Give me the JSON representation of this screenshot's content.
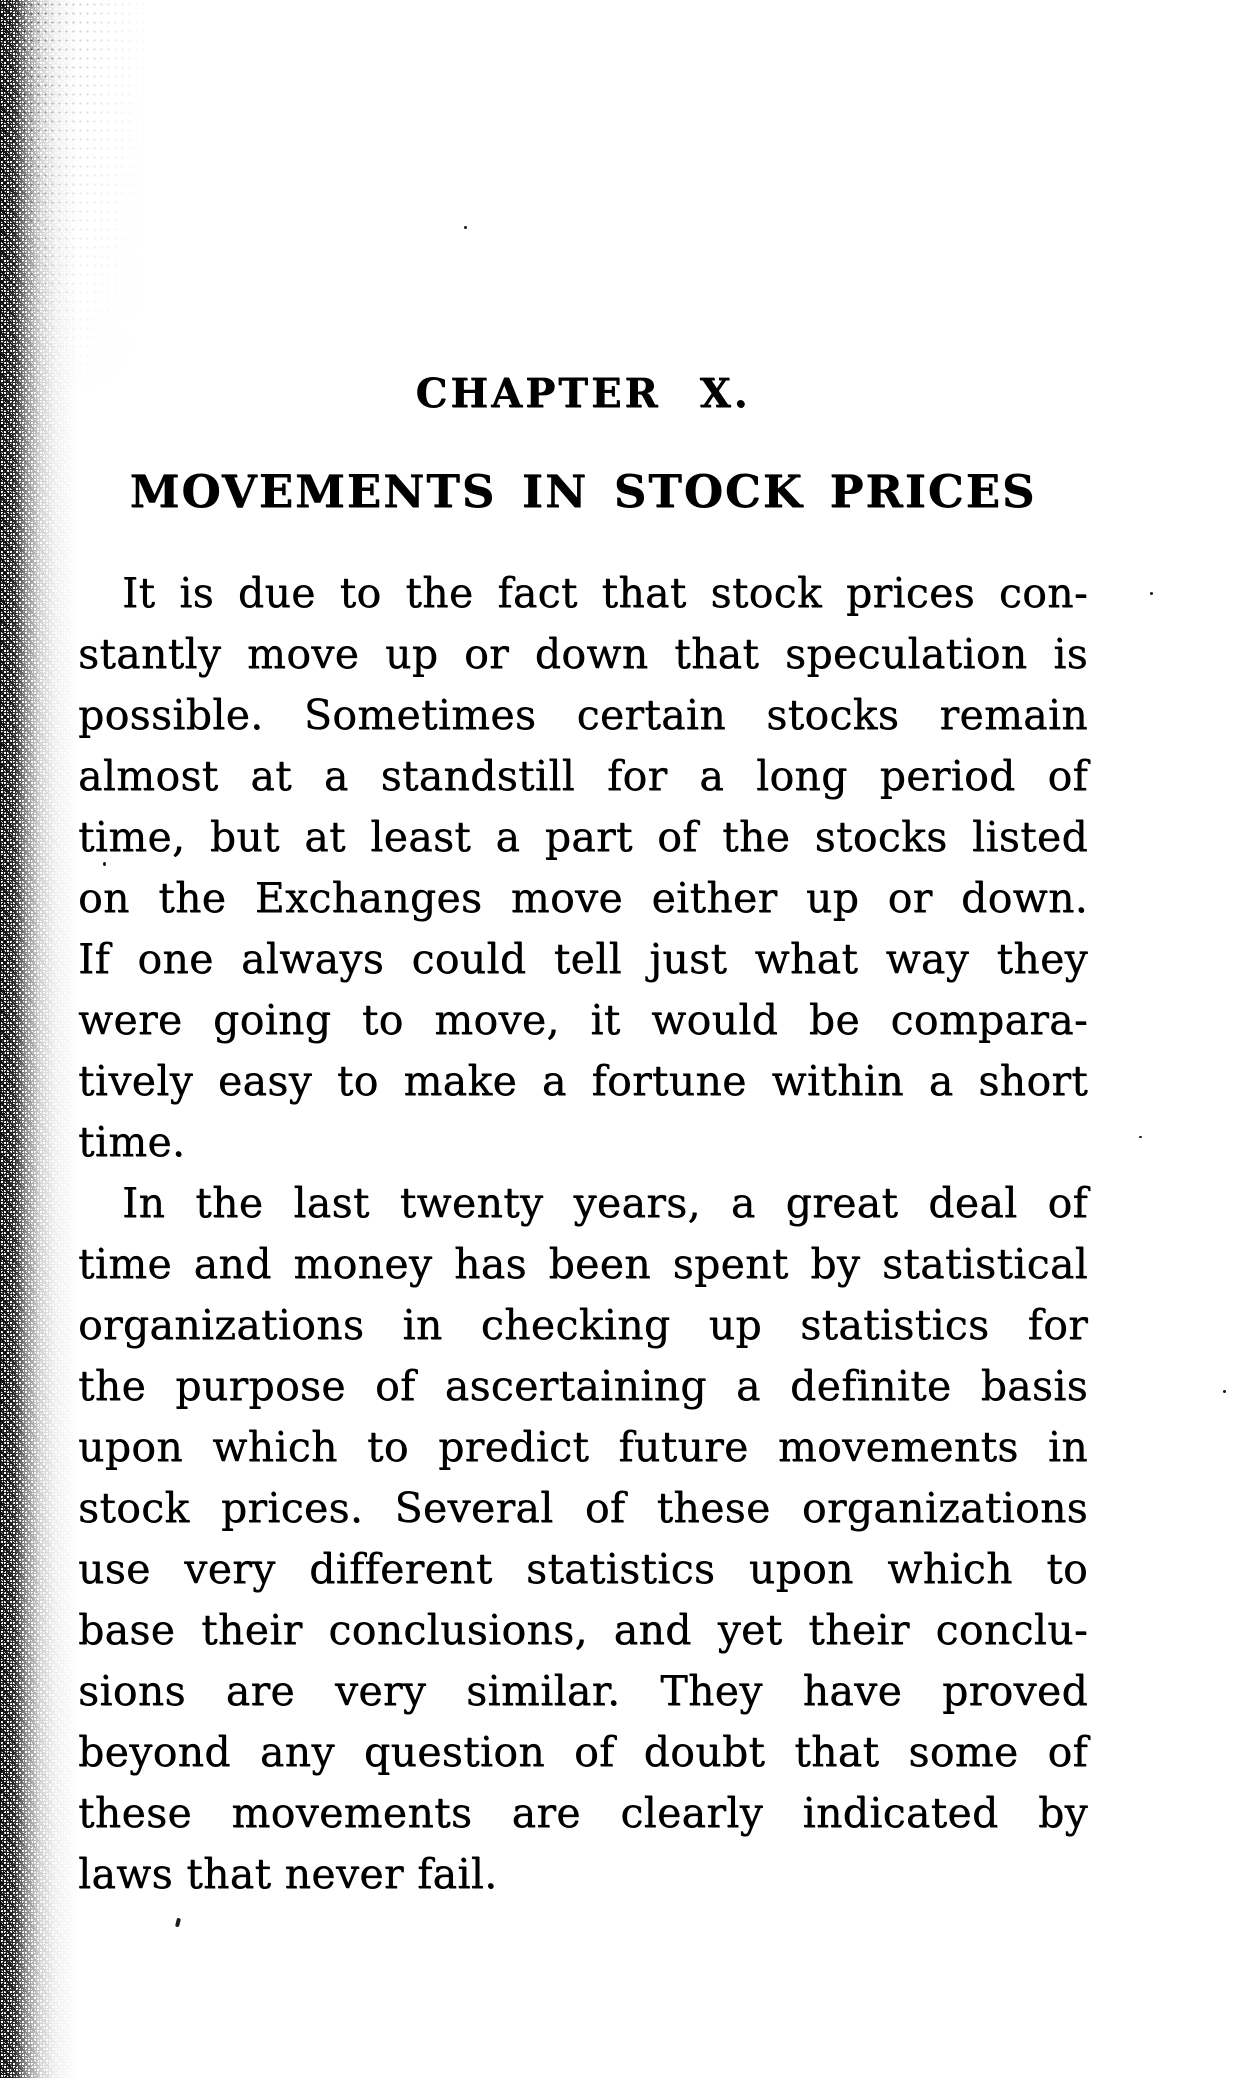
{
  "page": {
    "chapter_heading": "CHAPTER X.",
    "title": "MOVEMENTS IN STOCK PRICES",
    "paragraphs": [
      {
        "lines": [
          "It is due to the fact that stock prices con-",
          "stantly move up or down that speculation is",
          "possible.  Sometimes certain stocks remain",
          "almost at a standstill for a long period of",
          "time, but at least a part of the stocks listed",
          "on the Exchanges move either up or down.",
          "If one always could tell just what way they",
          "were going to move, it would be compara-",
          "tively easy to make a fortune within a short",
          "time."
        ]
      },
      {
        "lines": [
          "In the last twenty years, a great deal of",
          "time and money has been spent by statistical",
          "organizations in checking up statistics for",
          "the purpose of ascertaining a definite basis",
          "upon which to predict future movements in",
          "stock prices.  Several of these organizations",
          "use very different statistics upon which to",
          "base their conclusions, and yet their conclu-",
          "sions are very similar.  They have proved",
          "beyond any question of doubt that some of",
          "these movements are clearly indicated by",
          "laws that never fail."
        ]
      }
    ]
  }
}
